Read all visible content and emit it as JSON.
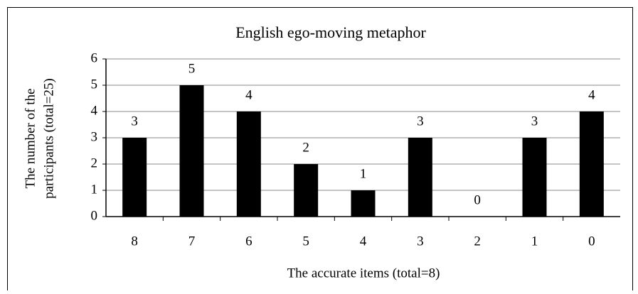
{
  "chart_data": {
    "type": "bar",
    "title": "English ego-moving metaphor",
    "x_label": "The accurate items (total=8)",
    "y_label": [
      "The number of the",
      "participants (total=25)"
    ],
    "categories": [
      "8",
      "7",
      "6",
      "5",
      "4",
      "3",
      "2",
      "1",
      "0"
    ],
    "values": [
      3,
      5,
      4,
      2,
      1,
      3,
      0,
      3,
      4
    ],
    "color": "#000000",
    "ylim": [
      0,
      6
    ],
    "yticks": [
      0,
      1,
      2,
      3,
      4,
      5,
      6
    ],
    "grid": true
  }
}
